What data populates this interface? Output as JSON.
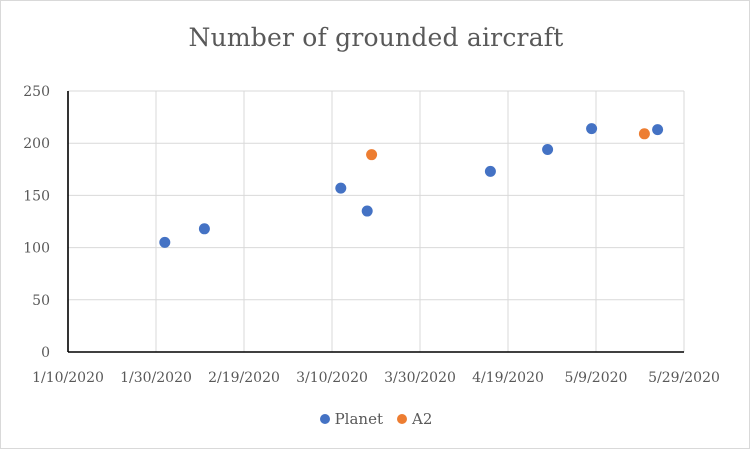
{
  "chart_data": {
    "type": "scatter",
    "title": "Number of grounded aircraft",
    "xlabel": "",
    "ylabel": "",
    "x_axis": {
      "type": "date",
      "min": "2020-01-10",
      "max": "2020-05-29",
      "tick_labels": [
        "1/10/2020",
        "1/30/2020",
        "2/19/2020",
        "3/10/2020",
        "3/30/2020",
        "4/19/2020",
        "5/9/2020",
        "5/29/2020"
      ]
    },
    "ylim": [
      0,
      250
    ],
    "y_ticks": [
      0,
      50,
      100,
      150,
      200,
      250
    ],
    "grid": true,
    "legend": "bottom",
    "series": [
      {
        "name": "Planet",
        "color": "#4472c4",
        "points": [
          {
            "x": "2020-02-01",
            "y": 105
          },
          {
            "x": "2020-02-10",
            "y": 118
          },
          {
            "x": "2020-03-12",
            "y": 157
          },
          {
            "x": "2020-03-18",
            "y": 135
          },
          {
            "x": "2020-04-15",
            "y": 173
          },
          {
            "x": "2020-04-28",
            "y": 194
          },
          {
            "x": "2020-05-08",
            "y": 214
          },
          {
            "x": "2020-05-23",
            "y": 213
          }
        ]
      },
      {
        "name": "A2",
        "color": "#ed7d31",
        "points": [
          {
            "x": "2020-03-19",
            "y": 189
          },
          {
            "x": "2020-05-20",
            "y": 209
          }
        ]
      }
    ]
  }
}
